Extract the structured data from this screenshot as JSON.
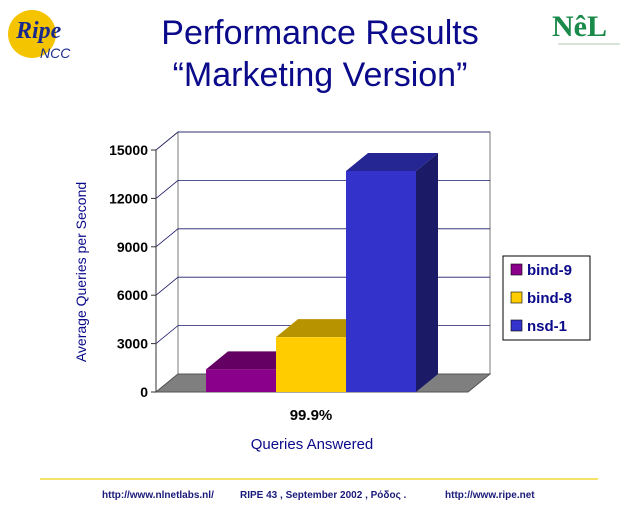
{
  "logos": {
    "left_main": "Ripe",
    "left_sub": "NCC",
    "right_main": "NêL"
  },
  "slide": {
    "title_line1": "Performance Results",
    "title_line2": "“Marketing Version”"
  },
  "footer": {
    "left": "http://www.nlnetlabs.nl/",
    "center": "RIPE 43 ,  September 2002 , Ρόδος .",
    "right": "http://www.ripe.net"
  },
  "colors": {
    "title": "#0a0a8a",
    "bind9": "#8b008b",
    "bind8": "#ffcc00",
    "nsd1": "#3333cc"
  },
  "chart_data": {
    "type": "bar",
    "categories": [
      "99.9%"
    ],
    "series": [
      {
        "name": "bind-9",
        "values": [
          1400
        ],
        "color": "#8b008b"
      },
      {
        "name": "bind-8",
        "values": [
          3400
        ],
        "color": "#ffcc00"
      },
      {
        "name": "nsd-1",
        "values": [
          13700
        ],
        "color": "#3333cc"
      }
    ],
    "xlabel": "Queries Answered",
    "ylabel": "Average Queries per Second",
    "ylim": [
      0,
      15000
    ],
    "yticks": [
      "0",
      "3000",
      "6000",
      "9000",
      "12000",
      "15000"
    ],
    "grid": true,
    "legend": "right",
    "three_d": true
  }
}
